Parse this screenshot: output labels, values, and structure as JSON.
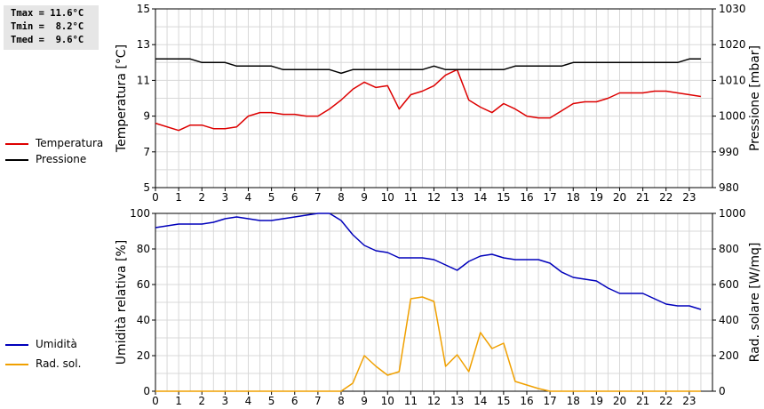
{
  "stats": {
    "tmax": "Tmax = 11.6°C",
    "tmin": "Tmin =  8.2°C",
    "tmed": "Tmed =  9.6°C"
  },
  "legend_top": [
    {
      "label": "Temperatura",
      "color": "#dd0000"
    },
    {
      "label": "Pressione",
      "color": "#000000"
    }
  ],
  "legend_bottom": [
    {
      "label": "Umidità",
      "color": "#0000bb"
    },
    {
      "label": "Rad. sol.",
      "color": "#f0a000"
    }
  ],
  "chart_data": [
    {
      "type": "line",
      "ylabel": "Temperatura [°C]",
      "y2label": "Pressione [mbar]",
      "xlim": [
        0,
        24
      ],
      "ylim": [
        5,
        15
      ],
      "y2lim": [
        980,
        1030
      ],
      "xticks": [
        "0",
        "1",
        "2",
        "3",
        "4",
        "5",
        "6",
        "7",
        "8",
        "9",
        "10",
        "11",
        "12",
        "13",
        "14",
        "15",
        "16",
        "17",
        "18",
        "19",
        "20",
        "21",
        "22",
        "23"
      ],
      "yticks": [
        "5",
        "7",
        "9",
        "11",
        "13",
        "15"
      ],
      "y2ticks": [
        "980",
        "990",
        "1000",
        "1010",
        "1020",
        "1030"
      ],
      "grid": true,
      "series": [
        {
          "name": "Temperatura",
          "axis": "left",
          "color": "#dd0000",
          "x": [
            0,
            1,
            1.5,
            2,
            2.5,
            3,
            3.5,
            4,
            4.5,
            5,
            5.5,
            6,
            6.5,
            7,
            7.5,
            8,
            8.5,
            9,
            9.5,
            10,
            10.5,
            11,
            11.5,
            12,
            12.5,
            13,
            13.5,
            14,
            14.5,
            15,
            15.5,
            16,
            16.5,
            17,
            17.5,
            18,
            18.5,
            19,
            19.5,
            20,
            20.5,
            21,
            21.5,
            22,
            22.5,
            23,
            23.5
          ],
          "values": [
            8.6,
            8.2,
            8.5,
            8.5,
            8.3,
            8.3,
            8.4,
            9.0,
            9.2,
            9.2,
            9.1,
            9.1,
            9.0,
            9.0,
            9.4,
            9.9,
            10.5,
            10.9,
            10.6,
            10.7,
            9.4,
            10.2,
            10.4,
            10.7,
            11.3,
            11.6,
            9.9,
            9.5,
            9.2,
            9.7,
            9.4,
            9.0,
            8.9,
            8.9,
            9.3,
            9.7,
            9.8,
            9.8,
            10.0,
            10.3,
            10.3,
            10.3,
            10.4,
            10.4,
            10.3,
            10.2,
            10.1
          ]
        },
        {
          "name": "Pressione",
          "axis": "right",
          "color": "#000000",
          "x": [
            0,
            0.5,
            1,
            1.5,
            2,
            2.5,
            3,
            3.5,
            4,
            4.5,
            5,
            5.5,
            6,
            6.5,
            7,
            7.5,
            8,
            8.5,
            9,
            9.5,
            10,
            10.5,
            11,
            11.5,
            12,
            12.5,
            13,
            13.5,
            14,
            14.5,
            15,
            15.5,
            16,
            16.5,
            17,
            17.5,
            18,
            18.5,
            19,
            19.5,
            20,
            20.5,
            21,
            21.5,
            22,
            22.5,
            23,
            23.5
          ],
          "values": [
            1016,
            1016,
            1016,
            1016,
            1015,
            1015,
            1015,
            1014,
            1014,
            1014,
            1014,
            1013,
            1013,
            1013,
            1013,
            1013,
            1012,
            1013,
            1013,
            1013,
            1013,
            1013,
            1013,
            1013,
            1014,
            1013,
            1013,
            1013,
            1013,
            1013,
            1013,
            1014,
            1014,
            1014,
            1014,
            1014,
            1015,
            1015,
            1015,
            1015,
            1015,
            1015,
            1015,
            1015,
            1015,
            1015,
            1016,
            1016
          ]
        }
      ]
    },
    {
      "type": "line",
      "ylabel": "Umidità relativa [%]",
      "y2label": "Rad. solare [W/mq]",
      "xlim": [
        0,
        24
      ],
      "ylim": [
        0,
        100
      ],
      "y2lim": [
        0,
        1000
      ],
      "xticks": [
        "0",
        "1",
        "2",
        "3",
        "4",
        "5",
        "6",
        "7",
        "8",
        "9",
        "10",
        "11",
        "12",
        "13",
        "14",
        "15",
        "16",
        "17",
        "18",
        "19",
        "20",
        "21",
        "22",
        "23"
      ],
      "yticks": [
        "0",
        "20",
        "40",
        "60",
        "80",
        "100"
      ],
      "y2ticks": [
        "0",
        "200",
        "400",
        "600",
        "800",
        "1000"
      ],
      "grid": true,
      "series": [
        {
          "name": "Umidità",
          "axis": "left",
          "color": "#0000bb",
          "x": [
            0,
            0.5,
            1,
            1.5,
            2,
            2.5,
            3,
            3.5,
            4,
            4.5,
            5,
            5.5,
            6,
            6.5,
            7,
            7.5,
            8,
            8.5,
            9,
            9.5,
            10,
            10.5,
            11,
            11.5,
            12,
            12.5,
            13,
            13.5,
            14,
            14.5,
            15,
            15.5,
            16,
            16.5,
            17,
            17.5,
            18,
            18.5,
            19,
            19.5,
            20,
            20.5,
            21,
            21.5,
            22,
            22.5,
            23,
            23.5
          ],
          "values": [
            92,
            93,
            94,
            94,
            94,
            95,
            97,
            98,
            97,
            96,
            96,
            97,
            98,
            99,
            100,
            100,
            96,
            88,
            82,
            79,
            78,
            75,
            75,
            75,
            74,
            71,
            68,
            73,
            76,
            77,
            75,
            74,
            74,
            74,
            72,
            67,
            64,
            63,
            62,
            58,
            55,
            55,
            55,
            52,
            49,
            48,
            48,
            46
          ]
        },
        {
          "name": "Rad. sol.",
          "axis": "right",
          "color": "#f0a000",
          "x": [
            0,
            1,
            2,
            3,
            4,
            5,
            6,
            7,
            8,
            8.5,
            9,
            9.5,
            10,
            10.5,
            11,
            11.5,
            12,
            12.5,
            13,
            13.5,
            14,
            14.5,
            15,
            15.5,
            16,
            16.5,
            17,
            17.5,
            18,
            19,
            20,
            21,
            22,
            23,
            23.5
          ],
          "values": [
            0,
            0,
            0,
            0,
            0,
            0,
            0,
            0,
            0,
            45,
            200,
            140,
            90,
            110,
            520,
            530,
            505,
            140,
            205,
            110,
            330,
            240,
            270,
            55,
            35,
            15,
            0,
            0,
            0,
            0,
            0,
            0,
            0,
            0,
            0
          ]
        }
      ]
    }
  ]
}
